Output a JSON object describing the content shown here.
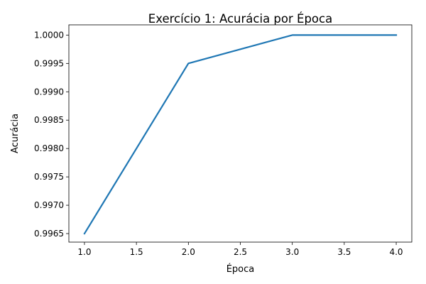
{
  "chart_data": {
    "type": "line",
    "title": "Exercício 1: Acurácia por Época",
    "xlabel": "Época",
    "ylabel": "Acurácia",
    "x": [
      1.0,
      2.0,
      3.0,
      4.0
    ],
    "series": [
      {
        "values": [
          0.9965,
          0.9995,
          1.0,
          1.0
        ],
        "color": "#1f77b4"
      }
    ],
    "xlim": [
      0.85,
      4.15
    ],
    "ylim": [
      0.99635,
      1.00018
    ],
    "xticks": [
      1.0,
      1.5,
      2.0,
      2.5,
      3.0,
      3.5,
      4.0
    ],
    "xtick_labels": [
      "1.0",
      "1.5",
      "2.0",
      "2.5",
      "3.0",
      "3.5",
      "4.0"
    ],
    "yticks": [
      0.9965,
      0.997,
      0.9975,
      0.998,
      0.9985,
      0.999,
      0.9995,
      1.0
    ],
    "ytick_labels": [
      "0.9965",
      "0.9970",
      "0.9975",
      "0.9980",
      "0.9985",
      "0.9990",
      "0.9995",
      "1.0000"
    ],
    "grid": false,
    "legend": "none"
  }
}
